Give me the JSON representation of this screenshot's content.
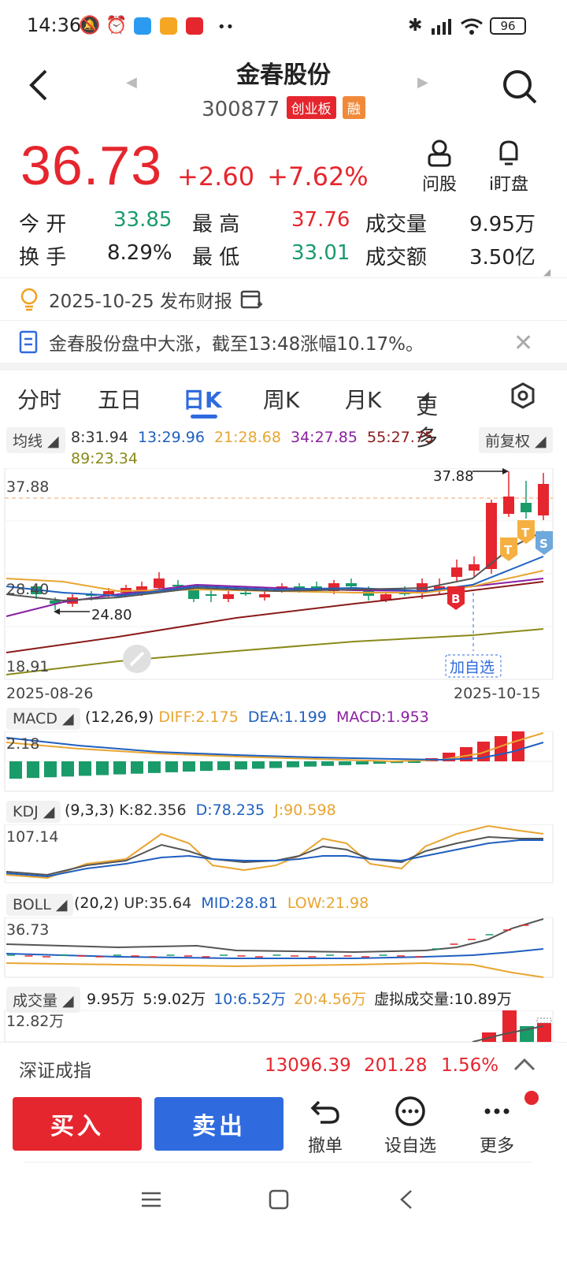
{
  "status": {
    "time": "14:36",
    "battery": "96"
  },
  "header": {
    "name": "金春股份",
    "code": "300877",
    "tag1": "创业板",
    "tag2": "融"
  },
  "actions": {
    "ask": "问股",
    "watch": "i盯盘"
  },
  "price": {
    "last": "36.73",
    "change": "+2.60",
    "pct": "+7.62%"
  },
  "quote": {
    "open_label": "今  开",
    "open": "33.85",
    "high_label": "最  高",
    "high": "37.76",
    "vol_label": "成交量",
    "vol": "9.95万",
    "turnover_label": "换  手",
    "turnover": "8.29%",
    "low_label": "最  低",
    "low": "33.01",
    "amount_label": "成交额",
    "amount": "3.50亿"
  },
  "notice1": "2025-10-25 发布财报",
  "notice2": "金春股份盘中大涨，截至13:48涨幅10.17%。",
  "tabs": [
    "分时",
    "五日",
    "日K",
    "周K",
    "月K",
    "更多"
  ],
  "ma": {
    "label": "均线",
    "ma8": "8:31.94",
    "ma13": "13:29.96",
    "ma21": "21:28.68",
    "ma34": "34:27.85",
    "ma55": "55:27.75",
    "ma89": "89:23.34",
    "adjust": "前复权"
  },
  "kchart": {
    "ytop": "37.88",
    "ymid": "28.40",
    "ybot": "18.91",
    "hi_mark": "37.88",
    "lo_mark": "24.80",
    "date_start": "2025-08-26",
    "date_end": "2025-10-15",
    "add_watch": "加自选",
    "badge_b": "B",
    "badge_t": "T",
    "badge_s": "S"
  },
  "macd": {
    "label": "MACD",
    "params": "(12,26,9)",
    "diff": "DIFF:2.175",
    "dea": "DEA:1.199",
    "macd": "MACD:1.953",
    "ytop": "2.18"
  },
  "kdj": {
    "label": "KDJ",
    "params": "(9,3,3)",
    "k": "K:82.356",
    "d": "D:78.235",
    "j": "J:90.598",
    "ytop": "107.14"
  },
  "boll": {
    "label": "BOLL",
    "params": "(20,2)",
    "up": "UP:35.64",
    "mid": "MID:28.81",
    "low": "LOW:21.98",
    "ytop": "36.73"
  },
  "volume": {
    "label": "成交量",
    "v": "9.95万",
    "v5": "5:9.02万",
    "v10": "10:6.52万",
    "v20": "20:4.56万",
    "virtual": "虚拟成交量:10.89万",
    "ytop": "12.82万"
  },
  "index": {
    "name": "深证成指",
    "value": "13096.39",
    "change": "201.28",
    "pct": "1.56%"
  },
  "bottom": {
    "buy": "买入",
    "sell": "卖出",
    "cancel": "撤单",
    "watch": "设自选",
    "more": "更多"
  },
  "colors": {
    "up": "#e5262e",
    "down": "#1a9b6a",
    "buy": "#e5262e",
    "sell": "#2f6bde",
    "ma13": "#1f5fbf",
    "ma21": "#e8a531",
    "ma34": "#8a1fa0",
    "ma55": "#8b1a1a",
    "ma89": "#8a8a1a"
  }
}
